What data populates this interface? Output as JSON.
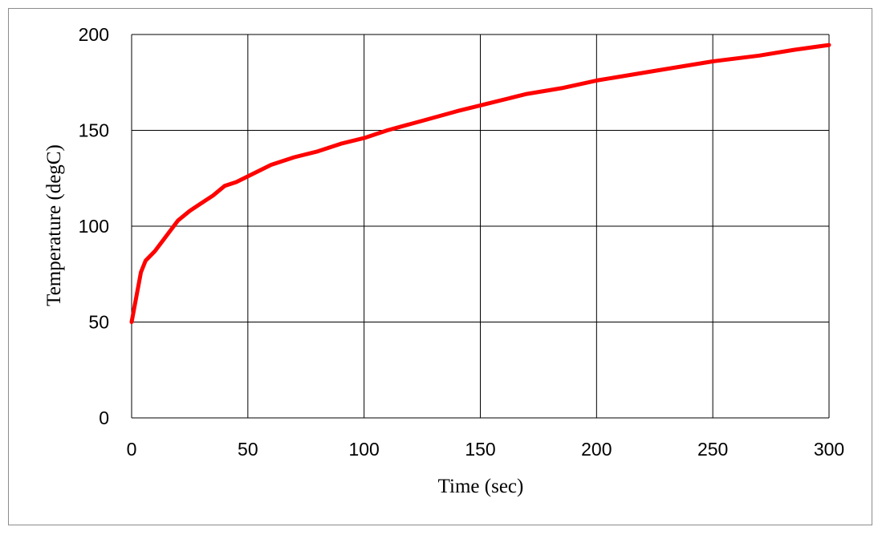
{
  "chart_data": {
    "type": "line",
    "title": "",
    "xlabel": "Time (sec)",
    "ylabel": "Temperature (degC)",
    "xlim": [
      0,
      300
    ],
    "ylim": [
      0,
      200
    ],
    "x_ticks": [
      "0",
      "50",
      "100",
      "150",
      "200",
      "250",
      "300"
    ],
    "y_ticks": [
      "0",
      "50",
      "100",
      "150",
      "200"
    ],
    "grid": true,
    "legend": "none",
    "series": [
      {
        "color": "#ff0000",
        "x": [
          0,
          2,
          4,
          6,
          10,
          15,
          20,
          25,
          30,
          35,
          40,
          45,
          50,
          60,
          70,
          80,
          90,
          100,
          110,
          125,
          140,
          150,
          170,
          185,
          200,
          225,
          250,
          270,
          285,
          300
        ],
        "y": [
          50,
          63,
          76,
          82,
          87,
          95,
          103,
          108,
          112,
          116,
          121,
          123,
          126,
          132,
          136,
          139,
          143,
          146,
          150,
          155,
          160,
          163,
          169,
          172,
          176,
          181,
          186,
          189,
          192,
          194.5
        ]
      }
    ]
  }
}
